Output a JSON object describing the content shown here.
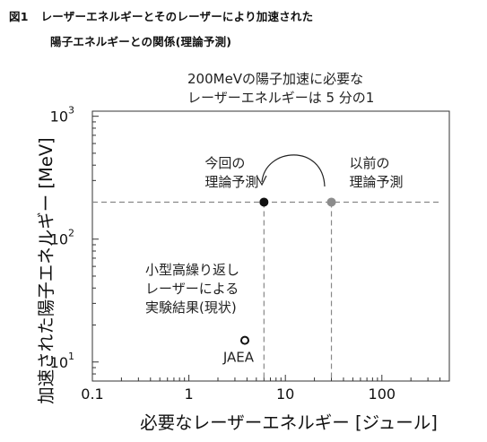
{
  "caption": {
    "figure": "図1",
    "line1": "レーザーエネルギーとそのレーザーにより加速された",
    "line2": "陽子エネルギーとの関係(理論予測)"
  },
  "chart_data": {
    "type": "scatter",
    "title": "",
    "xlabel": "必要なレーザーエネルギー [ジュール]",
    "ylabel": "加速された陽子エネルギー [MeV]",
    "x_scale": "log",
    "y_scale": "log",
    "xlim": [
      0.1,
      500
    ],
    "ylim": [
      7,
      1100
    ],
    "x_ticks": [
      {
        "value": 0.1,
        "label": "0.1"
      },
      {
        "value": 1,
        "label": "1"
      },
      {
        "value": 10,
        "label": "10"
      },
      {
        "value": 100,
        "label": "100"
      }
    ],
    "y_ticks": [
      {
        "value": 10,
        "base": "10",
        "exp": "1"
      },
      {
        "value": 100,
        "base": "10",
        "exp": "2"
      },
      {
        "value": 1000,
        "base": "10",
        "exp": "3"
      }
    ],
    "reference_line_y": 200,
    "points": [
      {
        "x": 6,
        "y": 200,
        "style": "filled-black",
        "label_lines": [
          "今回の",
          "理論予測"
        ]
      },
      {
        "x": 30,
        "y": 200,
        "style": "filled-gray",
        "label_lines": [
          "以前の",
          "理論予測"
        ]
      },
      {
        "x": 3.8,
        "y": 15,
        "style": "ring",
        "label_lines": [
          "JAEA"
        ]
      }
    ],
    "experiment_note_lines": [
      "小型高繰り返し",
      "レーザーによる",
      "実験結果(現状)"
    ],
    "headline_lines": [
      "200MeVの陽子加速に必要な",
      "レーザーエネルギーは 5 分の1"
    ],
    "colors": {
      "black_point": "#111111",
      "gray_point": "#8c8c8c",
      "dashed_line": "#888888"
    }
  }
}
